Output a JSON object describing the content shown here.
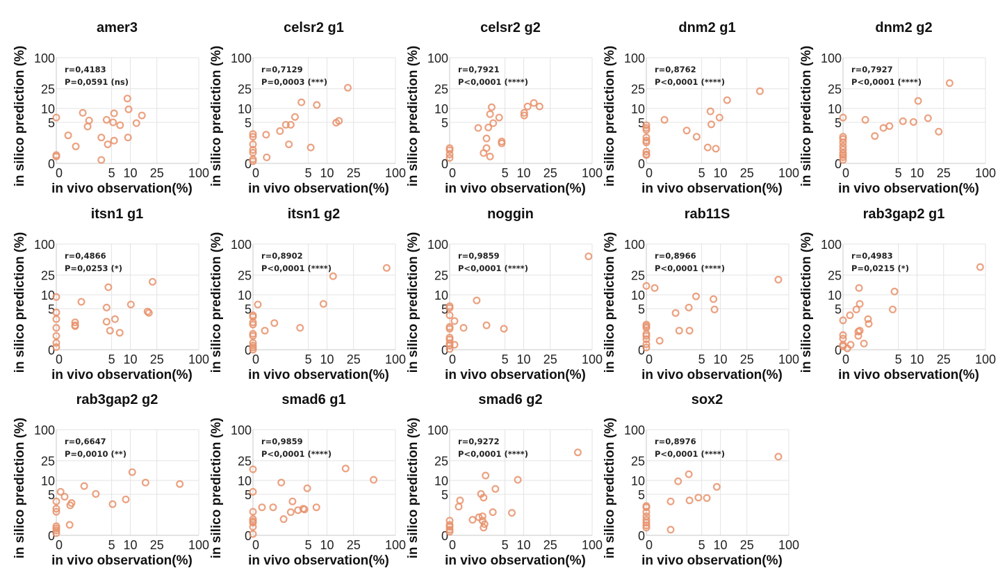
{
  "marker_color": "#E8906A",
  "chart_data": {
    "type": "scatter",
    "layout": "grid-3x5",
    "scale": "log10(1+value)",
    "xlabel": "in vivo observation(%)",
    "ylabel": "in silico prediction (%)",
    "xticks": [
      0,
      5,
      10,
      25,
      100
    ],
    "yticks": [
      0,
      5,
      10,
      25,
      100
    ],
    "xlim": [
      0,
      100
    ],
    "ylim": [
      0,
      100
    ],
    "grid": true,
    "panels": [
      {
        "title": "amer3",
        "r": "r=0,4183",
        "p": "P=0,0591 (ns)",
        "x": [
          0,
          0,
          0,
          0.47,
          0.88,
          1.36,
          1.89,
          1.76,
          3.3,
          3.3,
          4.1,
          4.3,
          5.3,
          5.5,
          5.5,
          6.9,
          9.0,
          9.4,
          9.2,
          12.4,
          15
        ],
        "y": [
          6.4,
          0.44,
          0.35,
          2.4,
          1.1,
          8.1,
          5.5,
          4.0,
          2.1,
          0.16,
          5.7,
          1.3,
          5.0,
          1.7,
          7.9,
          4.3,
          16,
          9.6,
          2.1,
          4.8,
          7.1
        ]
      },
      {
        "title": "celsr2 g1",
        "r": "r=0,7129",
        "p": "P=0,0003 (***)",
        "x": [
          0,
          0,
          0,
          0,
          0,
          0,
          0,
          0.53,
          0.56,
          1.4,
          1.9,
          2.4,
          2.9,
          2.2,
          3.8,
          5.5,
          6.9,
          13.8,
          15.2,
          20.6
        ],
        "y": [
          2.6,
          2.2,
          1.3,
          0.8,
          0.6,
          0.2,
          0.1,
          2.5,
          0.3,
          3.1,
          4.4,
          4.4,
          6.6,
          1.3,
          13.4,
          1.0,
          11.8,
          4.9,
          5.4,
          26.2
        ]
      },
      {
        "title": "celsr2 g2",
        "r": "r=0,7921",
        "p": "P<0,0001 (****)",
        "x": [
          0,
          0,
          0,
          0,
          1.52,
          2.3,
          2.3,
          2.0,
          2.7,
          2.5,
          2.7,
          2.9,
          3.1,
          3.97,
          4.4,
          4.4,
          10.2,
          10.2,
          11.5,
          14.3,
          17.4
        ],
        "y": [
          0.95,
          0.78,
          0.48,
          0.27,
          3.7,
          1.97,
          0.95,
          0.57,
          0.35,
          3.8,
          7.6,
          10.6,
          4.8,
          6.4,
          1.6,
          1.4,
          8.1,
          7.1,
          11.0,
          13.0,
          11.0
        ]
      },
      {
        "title": "dnm2 g1",
        "r": "r=0,8762",
        "p": "P<0,0001 (****)",
        "x": [
          0,
          0,
          0,
          0,
          0,
          0,
          0,
          0,
          0,
          0.8,
          2.7,
          4.1,
          6.3,
          8.5,
          6.98,
          7.2,
          9.7,
          12.7,
          38.6
        ],
        "y": [
          4.3,
          3.7,
          3.3,
          2.1,
          1.7,
          1.5,
          0.67,
          0.48,
          0.44,
          5.7,
          3.2,
          2.2,
          1.0,
          0.9,
          8.7,
          4.5,
          6.4,
          14.8,
          22.4
        ]
      },
      {
        "title": "dnm2 g2",
        "r": "r=0,7927",
        "p": "P<0,0001 (****)",
        "x": [
          0,
          0,
          0,
          0,
          0,
          0,
          0,
          0,
          0,
          0,
          1.06,
          1.8,
          2.7,
          3.5,
          5.97,
          8.8,
          10.4,
          14.7,
          21.2,
          30.6
        ],
        "y": [
          6.4,
          2.2,
          1.9,
          1.5,
          1.1,
          0.83,
          0.57,
          0.44,
          0.31,
          0.16,
          5.7,
          2.3,
          3.7,
          4.1,
          5.3,
          5.1,
          14.3,
          6.2,
          3.0,
          32.3
        ]
      },
      {
        "title": "itsn1 g1",
        "r": "r=0,4866",
        "p": "P=0,0253 (*)",
        "x": [
          0,
          0,
          0,
          0,
          0,
          0,
          0,
          0.84,
          0.84,
          0.84,
          1.25,
          4.1,
          4.4,
          4.1,
          5.7,
          4.7,
          6.8,
          10.2,
          18.2,
          19.1,
          21.6
        ],
        "y": [
          9.0,
          4.1,
          2.8,
          1.6,
          0.83,
          0.35,
          0.12,
          2.3,
          1.9,
          1.8,
          7.1,
          5.3,
          14.3,
          2.4,
          2.8,
          1.3,
          1.1,
          6.2,
          4.3,
          4.0,
          18.4
        ]
      },
      {
        "title": "itsn1 g2",
        "r": "r=0,8902",
        "p": "P<0,0001 (****)",
        "x": [
          0,
          0,
          0,
          0,
          0,
          0,
          0,
          0,
          0,
          0,
          0.17,
          0.47,
          1.0,
          3.6,
          8.8,
          12.4,
          75
        ],
        "y": [
          3.5,
          3.2,
          2.3,
          2.0,
          1.0,
          0.83,
          0.35,
          0.2,
          0.1,
          0,
          6.2,
          1.3,
          2.2,
          1.6,
          6.4,
          23.8,
          34.6
        ]
      },
      {
        "title": "noggin",
        "r": "r=0,9859",
        "p": "P<0,0001 (****)",
        "x": [
          0,
          0,
          0,
          0,
          0,
          0,
          0,
          0,
          0,
          0,
          0.17,
          0.17,
          0.57,
          1.4,
          2.3,
          4.8,
          89
        ],
        "y": [
          5.7,
          5.2,
          3.5,
          1.7,
          1.5,
          0.7,
          0.56,
          0.31,
          0.2,
          0.03,
          2.5,
          0.24,
          1.6,
          7.6,
          1.9,
          1.5,
          58
        ]
      },
      {
        "title": "rab11S",
        "r": "r=0,8966",
        "p": "P<0,0001 (****)",
        "x": [
          0,
          0,
          0,
          0,
          0,
          0,
          0,
          0,
          0,
          0.31,
          0.54,
          1.58,
          1.9,
          2.96,
          3.05,
          4.0,
          7.8,
          8.1,
          71
        ],
        "y": [
          2.0,
          1.8,
          1.6,
          1.0,
          0.83,
          0.58,
          0.27,
          0.1,
          15.2,
          13.8,
          0.48,
          3.97,
          1.3,
          5.3,
          1.3,
          9.3,
          8.1,
          4.8,
          20.3
        ]
      },
      {
        "title": "rab3gap2 g1",
        "r": "r=0,4983",
        "p": "P=0,0215 (*)",
        "x": [
          0,
          0,
          0,
          0,
          0,
          0.15,
          0.28,
          0.25,
          0.54,
          0.72,
          0.68,
          0.72,
          0.64,
          0.64,
          0.97,
          1.25,
          1.3,
          4.0,
          4.3,
          84
        ],
        "y": [
          2.6,
          0.89,
          0.62,
          0.24,
          0.16,
          0.06,
          0.24,
          3.5,
          4.8,
          6.4,
          13.8,
          1.3,
          1.2,
          0.83,
          0.31,
          2.8,
          2.1,
          4.8,
          11.7,
          35.9
        ]
      },
      {
        "title": "rab3gap2 g2",
        "r": "r=0,6647",
        "p": "P=0,0010 (**)",
        "x": [
          0,
          0,
          0,
          0,
          0,
          0,
          0,
          0.15,
          0.31,
          0.57,
          0.64,
          0.54,
          1.47,
          2.6,
          5.2,
          8.5,
          10.7,
          17.0,
          53.6
        ],
        "y": [
          3.4,
          2.2,
          1.8,
          0.49,
          0.36,
          0.24,
          0.1,
          5.7,
          4.4,
          2.7,
          3.1,
          0.58,
          7.6,
          5.1,
          2.9,
          3.8,
          14.8,
          9.0,
          8.4
        ]
      },
      {
        "title": "smad6 g1",
        "r": "r=0,9859",
        "p": "P<0,0001 (****)",
        "x": [
          0,
          0,
          0,
          0,
          0,
          0,
          0,
          0,
          0.34,
          0.92,
          1.5,
          1.7,
          2.4,
          2.6,
          3.3,
          4.1,
          4.3,
          4.8,
          6.8,
          19.1,
          48.8
        ],
        "y": [
          16.9,
          5.7,
          1.8,
          1.03,
          0.85,
          0.74,
          0.45,
          0.06,
          2.4,
          2.4,
          9.0,
          1.03,
          1.75,
          3.4,
          2.0,
          2.2,
          2.1,
          6.8,
          2.4,
          17.5,
          10.3
        ]
      },
      {
        "title": "smad6 g2",
        "r": "r=0,9272",
        "p": "P<0,0001 (****)",
        "x": [
          0,
          0,
          0,
          0,
          0,
          0.34,
          0.4,
          1.1,
          1.58,
          1.9,
          1.9,
          2.0,
          2.1,
          1.76,
          2.0,
          2.2,
          3.05,
          3.4,
          6.5,
          8.1,
          62.6
        ],
        "y": [
          0.9,
          0.58,
          0.45,
          0.28,
          0.17,
          2.5,
          3.6,
          0.97,
          1.2,
          1.3,
          0.9,
          0.4,
          0.63,
          5.1,
          4.2,
          12.6,
          1.75,
          6.6,
          1.67,
          10.3,
          36.4
        ]
      },
      {
        "title": "sox2",
        "r": "r=0,8976",
        "p": "P<0,0001 (****)",
        "x": [
          0,
          0,
          0,
          0,
          0,
          0,
          0,
          0,
          1.2,
          1.2,
          1.8,
          2.96,
          3.05,
          4.4,
          6.1,
          8.8,
          71
        ],
        "y": [
          2.6,
          2.4,
          1.75,
          1.3,
          0.97,
          0.74,
          0.54,
          0.4,
          3.4,
          0.28,
          9.6,
          13.4,
          3.6,
          4.2,
          4.1,
          7.3,
          30.0
        ]
      }
    ]
  }
}
